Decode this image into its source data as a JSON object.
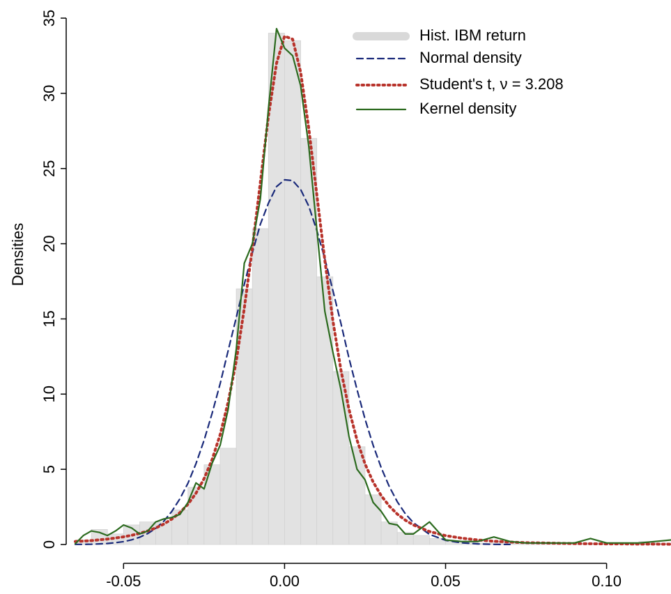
{
  "chart_data": {
    "type": "histogram",
    "y_label": "Densities",
    "xlim": [
      -0.065,
      0.12
    ],
    "ylim": [
      0,
      35
    ],
    "xticks": [
      {
        "value": -0.05,
        "label": "-0.05"
      },
      {
        "value": 0,
        "label": "0.00"
      },
      {
        "value": 0.05,
        "label": "0.05"
      },
      {
        "value": 0.1,
        "label": "0.10"
      }
    ],
    "yticks": [
      0,
      5,
      10,
      15,
      20,
      25,
      30,
      35
    ],
    "legend": "upper right",
    "histogram": {
      "name": "Hist. IBM return",
      "color": "#e2e2e2",
      "bins": [
        -0.065,
        -0.06,
        -0.055,
        -0.05,
        -0.045,
        -0.04,
        -0.035,
        -0.03,
        -0.025,
        -0.02,
        -0.015,
        -0.01,
        -0.005,
        0,
        0.005,
        0.01,
        0.015,
        0.02,
        0.025,
        0.03,
        0.035,
        0.04,
        0.045,
        0.05,
        0.055,
        0.06,
        0.065,
        0.07,
        0.075,
        0.08,
        0.085,
        0.09,
        0.095,
        0.1,
        0.105,
        0.11,
        0.115,
        0.12
      ],
      "values": [
        0.3,
        1.0,
        0.7,
        1.3,
        1.5,
        1.5,
        2.3,
        3.8,
        5.3,
        6.4,
        17.0,
        21.0,
        34.0,
        33.5,
        27.0,
        17.8,
        11.5,
        6.5,
        3.3,
        1.5,
        0.8,
        0.6,
        0.4,
        0.2,
        0.2,
        0.1,
        0.2,
        0.1,
        0.1,
        0.1,
        0.1,
        0.1,
        0.1,
        0.1,
        0.1,
        0.2,
        0.1
      ]
    },
    "x": [
      -0.065,
      -0.0625,
      -0.06,
      -0.0575,
      -0.055,
      -0.0525,
      -0.05,
      -0.0475,
      -0.045,
      -0.0425,
      -0.04,
      -0.0375,
      -0.035,
      -0.0325,
      -0.03,
      -0.0275,
      -0.025,
      -0.0225,
      -0.02,
      -0.0175,
      -0.015,
      -0.0125,
      -0.01,
      -0.0075,
      -0.005,
      -0.0025,
      0,
      0.0025,
      0.005,
      0.0075,
      0.01,
      0.0125,
      0.015,
      0.0175,
      0.02,
      0.0225,
      0.025,
      0.0275,
      0.03,
      0.0325,
      0.035,
      0.0375,
      0.04,
      0.045,
      0.05,
      0.055,
      0.06,
      0.065,
      0.07,
      0.075,
      0.08,
      0.085,
      0.09,
      0.095,
      0.1,
      0.105,
      0.11,
      0.115,
      0.12
    ],
    "series": [
      {
        "name": "Normal density",
        "color": "#1a2a7a",
        "style": "dashed",
        "values": [
          0.01,
          0.01,
          0.02,
          0.04,
          0.07,
          0.12,
          0.19,
          0.31,
          0.48,
          0.73,
          1.07,
          1.55,
          2.2,
          3.04,
          4.08,
          5.38,
          6.93,
          8.72,
          10.7,
          12.9,
          15.1,
          17.3,
          19.4,
          21.3,
          22.7,
          23.8,
          24.25,
          24.2,
          23.6,
          22.5,
          20.9,
          19.0,
          16.9,
          14.7,
          12.4,
          10.3,
          8.34,
          6.6,
          5.11,
          3.86,
          2.84,
          2.05,
          1.45,
          0.67,
          0.28,
          0.11,
          0.04,
          0.01,
          0.004,
          null,
          null,
          null,
          null,
          null,
          null,
          null,
          null,
          null,
          null
        ]
      },
      {
        "name": "Student's t, ν = 3.208",
        "color": "#b8332b",
        "style": "dotted",
        "values": [
          0.2,
          0.23,
          0.26,
          0.31,
          0.36,
          0.43,
          0.51,
          0.61,
          0.74,
          0.9,
          1.1,
          1.36,
          1.69,
          2.12,
          2.68,
          3.41,
          4.38,
          5.65,
          7.31,
          9.48,
          12.2,
          15.7,
          19.7,
          24.1,
          28.5,
          32.0,
          33.8,
          33.6,
          31.4,
          27.7,
          23.3,
          18.9,
          14.9,
          11.6,
          9.0,
          6.94,
          5.36,
          4.16,
          3.25,
          2.56,
          2.02,
          1.62,
          1.3,
          0.86,
          0.59,
          0.42,
          0.3,
          0.22,
          0.16,
          0.12,
          0.1,
          0.08,
          0.06,
          0.05,
          0.04,
          0.04,
          0.03,
          0.03,
          0.02
        ]
      },
      {
        "name": "Kernel density",
        "color": "#2b6a1e",
        "style": "solid",
        "values": [
          0.05,
          0.6,
          0.9,
          0.8,
          0.6,
          0.9,
          1.3,
          1.1,
          0.7,
          0.9,
          1.5,
          1.7,
          1.8,
          2.0,
          2.8,
          4.1,
          3.7,
          5.4,
          6.6,
          9.0,
          13.0,
          18.7,
          20.0,
          23.0,
          29.0,
          34.3,
          33.0,
          32.5,
          30.5,
          26.5,
          21.0,
          15.5,
          12.8,
          10.3,
          7.2,
          5.0,
          4.3,
          2.8,
          2.2,
          1.4,
          1.3,
          0.7,
          0.7,
          1.5,
          0.3,
          0.2,
          0.2,
          0.5,
          0.2,
          0.1,
          0.1,
          0.1,
          0.1,
          0.4,
          0.1,
          0.1,
          0.1,
          0.2,
          0.3
        ]
      }
    ]
  }
}
